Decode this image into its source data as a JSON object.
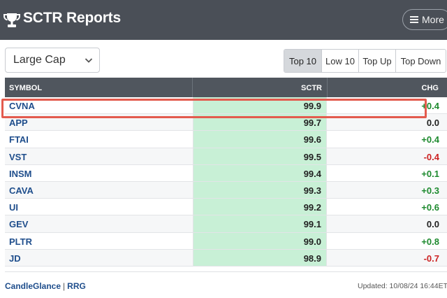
{
  "header": {
    "title": "SCTR Reports",
    "more_label": "More"
  },
  "filter": {
    "selected": "Large Cap"
  },
  "tabs": [
    {
      "label": "Top 10",
      "active": true
    },
    {
      "label": "Low 10",
      "active": false
    },
    {
      "label": "Top Up",
      "active": false
    },
    {
      "label": "Top Down",
      "active": false
    }
  ],
  "table": {
    "columns": {
      "symbol": "SYMBOL",
      "sctr": "SCTR",
      "chg": "CHG"
    },
    "rows": [
      {
        "symbol": "CVNA",
        "sctr": "99.9",
        "chg": "+0.4"
      },
      {
        "symbol": "APP",
        "sctr": "99.7",
        "chg": "0.0"
      },
      {
        "symbol": "FTAI",
        "sctr": "99.6",
        "chg": "+0.4"
      },
      {
        "symbol": "VST",
        "sctr": "99.5",
        "chg": "-0.4"
      },
      {
        "symbol": "INSM",
        "sctr": "99.4",
        "chg": "+0.1"
      },
      {
        "symbol": "CAVA",
        "sctr": "99.3",
        "chg": "+0.3"
      },
      {
        "symbol": "UI",
        "sctr": "99.2",
        "chg": "+0.6"
      },
      {
        "symbol": "GEV",
        "sctr": "99.1",
        "chg": "0.0"
      },
      {
        "symbol": "PLTR",
        "sctr": "99.0",
        "chg": "+0.8"
      },
      {
        "symbol": "JD",
        "sctr": "98.9",
        "chg": "-0.7"
      }
    ]
  },
  "footer": {
    "link1": "CandleGlance",
    "separator": "|",
    "link2": "RRG",
    "updated": "Updated: 10/08/24 16:44ET"
  },
  "colors": {
    "header_bg": "#4a4f57",
    "sctr_bg": "#c8f0d6",
    "up": "#1d8a2e",
    "down": "#cc2222",
    "highlight": "#e35b4e"
  }
}
